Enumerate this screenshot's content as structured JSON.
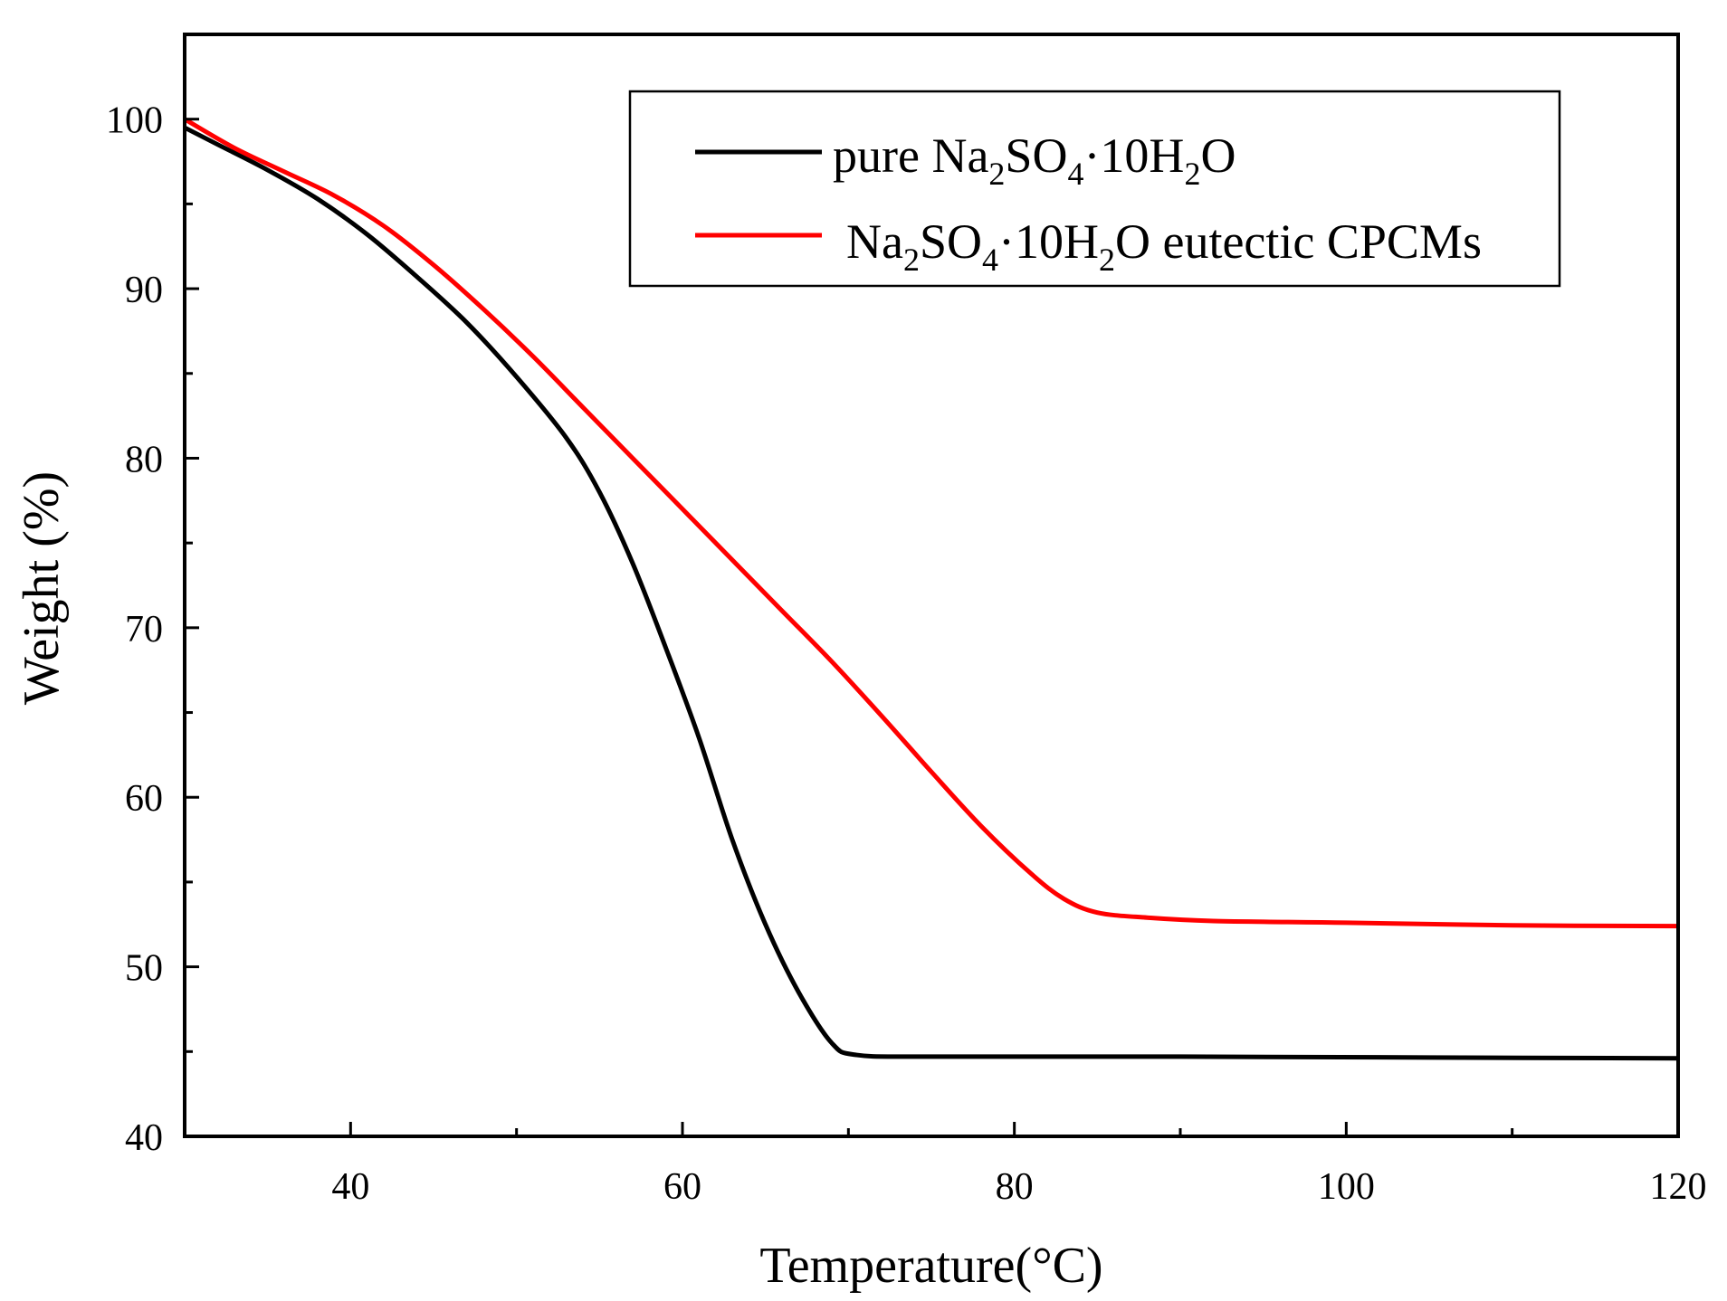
{
  "chart_data": {
    "type": "line",
    "title": "",
    "xlabel": "Temperature(°C)",
    "ylabel": "Weight (%)",
    "xlim": [
      30,
      120
    ],
    "ylim": [
      40,
      105
    ],
    "x_ticks": [
      40,
      60,
      80,
      100,
      120
    ],
    "x_minor_ticks": [
      50,
      70,
      90,
      110
    ],
    "y_ticks": [
      40,
      50,
      60,
      70,
      80,
      90,
      100
    ],
    "y_minor_ticks": [
      45,
      55,
      65,
      75,
      85,
      95
    ],
    "grid": false,
    "legend_position": "top-right",
    "series": [
      {
        "name": "pure Na2SO4·10H2O",
        "legend": {
          "pre": "pure Na",
          "s1": "2",
          "m1": "SO",
          "s2": "4",
          "m2": "·10H",
          "s3": "2",
          "post": "O"
        },
        "color": "#000000",
        "points": [
          [
            30,
            99.5
          ],
          [
            32,
            98.5
          ],
          [
            35,
            97
          ],
          [
            38,
            95.3
          ],
          [
            41,
            93.2
          ],
          [
            44,
            90.7
          ],
          [
            47,
            88.0
          ],
          [
            50,
            84.8
          ],
          [
            53,
            81.2
          ],
          [
            55,
            78.0
          ],
          [
            57,
            73.8
          ],
          [
            59,
            68.8
          ],
          [
            61,
            63.5
          ],
          [
            63,
            57.5
          ],
          [
            65,
            52.5
          ],
          [
            67,
            48.5
          ],
          [
            69,
            45.5
          ],
          [
            70.5,
            44.8
          ],
          [
            75,
            44.7
          ],
          [
            90,
            44.7
          ],
          [
            105,
            44.65
          ],
          [
            120,
            44.6
          ]
        ]
      },
      {
        "name": "Na2SO4·10H2O eutectic CPCMs",
        "legend": {
          "pre": "Na",
          "s1": "2",
          "m1": "SO",
          "s2": "4",
          "m2": "·10H",
          "s3": "2",
          "post": "O eutectic CPCMs"
        },
        "color": "#ff0000",
        "points": [
          [
            30,
            100
          ],
          [
            33,
            98.3
          ],
          [
            36,
            96.9
          ],
          [
            39,
            95.5
          ],
          [
            42,
            93.7
          ],
          [
            45,
            91.4
          ],
          [
            48,
            88.8
          ],
          [
            51,
            86.0
          ],
          [
            54,
            83.0
          ],
          [
            57,
            80.0
          ],
          [
            60,
            77.0
          ],
          [
            63,
            74.0
          ],
          [
            66,
            71.0
          ],
          [
            69,
            68.0
          ],
          [
            72,
            64.8
          ],
          [
            75,
            61.5
          ],
          [
            78,
            58.3
          ],
          [
            81,
            55.5
          ],
          [
            83,
            54.0
          ],
          [
            85,
            53.2
          ],
          [
            88,
            52.9
          ],
          [
            92,
            52.7
          ],
          [
            100,
            52.6
          ],
          [
            110,
            52.45
          ],
          [
            120,
            52.4
          ]
        ]
      }
    ]
  }
}
